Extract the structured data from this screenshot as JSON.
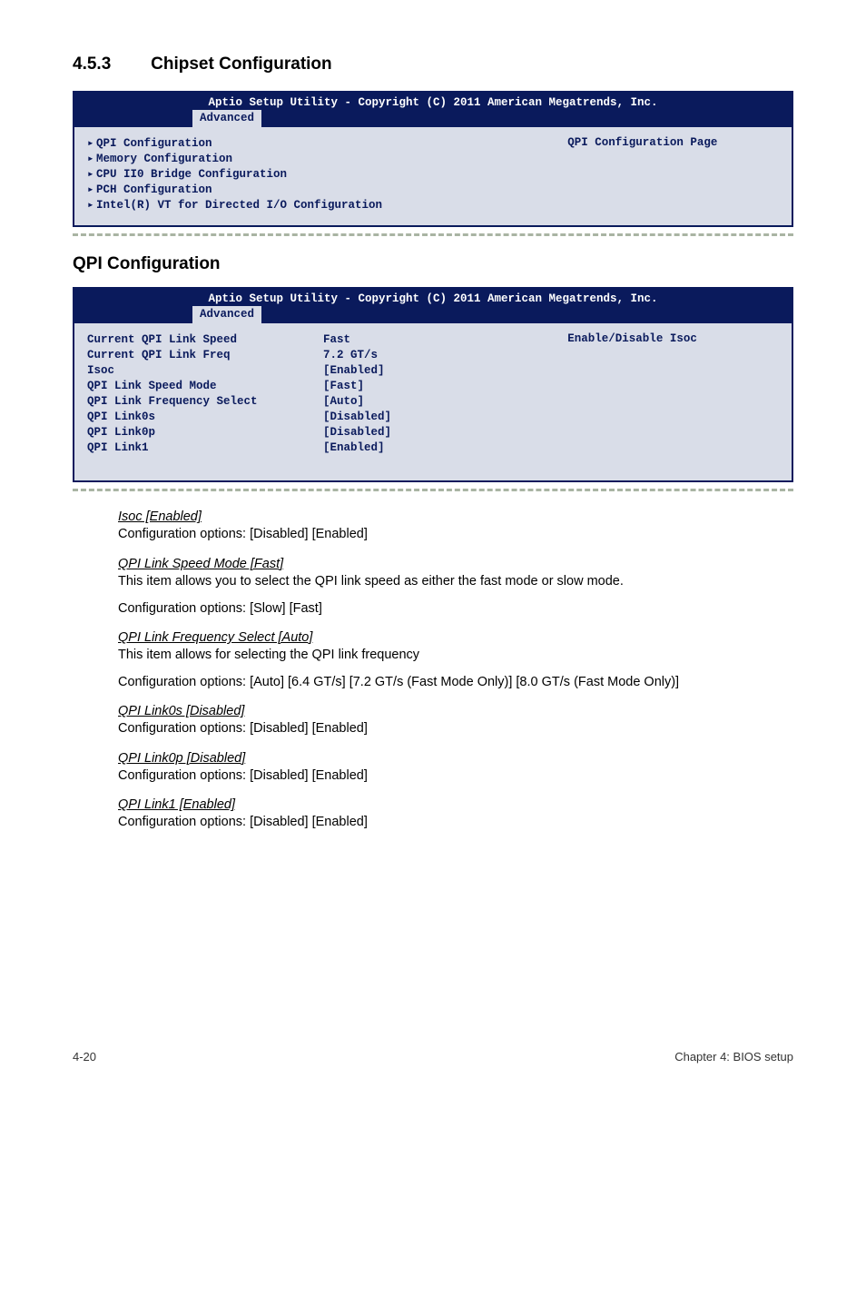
{
  "section": {
    "number": "4.5.3",
    "title": "Chipset Configuration"
  },
  "panel1": {
    "banner": "Aptio Setup Utility - Copyright (C) 2011 American Megatrends, Inc.",
    "tab": "Advanced",
    "help": "QPI Configuration Page",
    "items": [
      "QPI Configuration",
      "Memory Configuration",
      "CPU II0 Bridge Configuration",
      "PCH Configuration",
      "Intel(R) VT for Directed I/O Configuration"
    ]
  },
  "subheading": "QPI Configuration",
  "panel2": {
    "banner": "Aptio Setup Utility - Copyright (C) 2011 American Megatrends, Inc.",
    "tab": "Advanced",
    "help": "Enable/Disable Isoc",
    "rows": [
      {
        "label": "Current QPI Link Speed",
        "value": "Fast",
        "dark": true
      },
      {
        "label": "Current QPI Link Freq",
        "value": "7.2 GT/s",
        "dark": true
      },
      {
        "label": "Isoc",
        "value": "[Enabled]",
        "dark": false
      },
      {
        "label": "QPI Link Speed Mode",
        "value": "[Fast]",
        "dark": false
      },
      {
        "label": "QPI Link Frequency Select",
        "value": "[Auto]",
        "dark": false
      },
      {
        "label": "QPI Link0s",
        "value": "[Disabled]",
        "dark": false
      },
      {
        "label": "QPI Link0p",
        "value": "[Disabled]",
        "dark": false
      },
      {
        "label": "QPI Link1",
        "value": "[Enabled]",
        "dark": false
      }
    ]
  },
  "doc": [
    {
      "head": "Isoc [Enabled]",
      "paras": [
        "Configuration options: [Disabled] [Enabled]"
      ]
    },
    {
      "head": "QPI Link Speed Mode [Fast]",
      "paras": [
        "This item allows you to select the QPI link speed as either the fast mode or slow mode.",
        "Configuration options: [Slow] [Fast]"
      ]
    },
    {
      "head": "QPI Link Frequency Select [Auto]",
      "paras": [
        "This item allows for selecting the QPI link frequency",
        "Configuration options: [Auto] [6.4 GT/s] [7.2 GT/s (Fast Mode Only)] [8.0 GT/s (Fast Mode Only)]"
      ]
    },
    {
      "head": "QPI Link0s [Disabled]",
      "paras": [
        "Configuration options: [Disabled] [Enabled]"
      ]
    },
    {
      "head": "QPI Link0p [Disabled]",
      "paras": [
        "Configuration options: [Disabled] [Enabled]"
      ]
    },
    {
      "head": "QPI Link1 [Enabled]",
      "paras": [
        "Configuration options: [Disabled] [Enabled]"
      ]
    }
  ],
  "footer": {
    "left": "4-20",
    "right": "Chapter 4: BIOS setup"
  },
  "colors": {
    "dark": "#0a1a5c"
  }
}
